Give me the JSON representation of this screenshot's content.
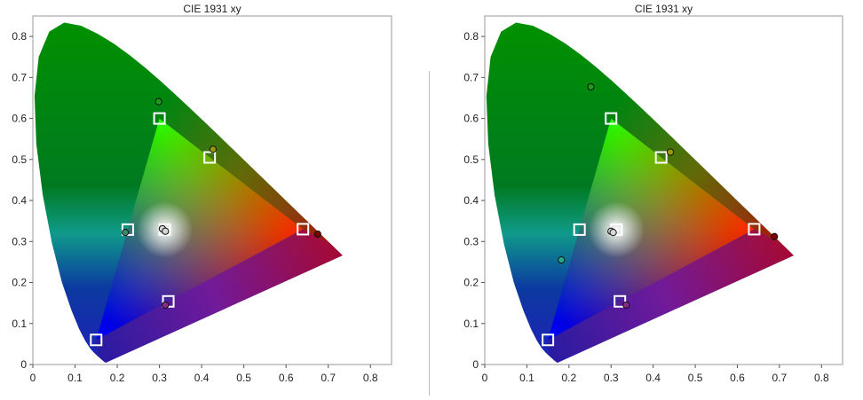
{
  "chart_data": [
    {
      "type": "scatter",
      "title": "CIE 1931 xy",
      "xlabel": "",
      "ylabel": "",
      "xlim": [
        0,
        0.85
      ],
      "ylim": [
        0,
        0.85
      ],
      "x_ticks": [
        "0",
        "0.1",
        "0.2",
        "0.3",
        "0.4",
        "0.5",
        "0.6",
        "0.7",
        "0.8"
      ],
      "y_ticks": [
        "0",
        "0.1",
        "0.2",
        "0.3",
        "0.4",
        "0.5",
        "0.6",
        "0.7",
        "0.8"
      ],
      "grid": false,
      "legend": "none",
      "gamut_triangle": [
        [
          0.64,
          0.33
        ],
        [
          0.3,
          0.6
        ],
        [
          0.15,
          0.06
        ]
      ],
      "targets": [
        {
          "x": 0.64,
          "y": 0.33
        },
        {
          "x": 0.3,
          "y": 0.6
        },
        {
          "x": 0.15,
          "y": 0.06
        },
        {
          "x": 0.419,
          "y": 0.505
        },
        {
          "x": 0.225,
          "y": 0.329
        },
        {
          "x": 0.321,
          "y": 0.154
        },
        {
          "x": 0.3127,
          "y": 0.329
        }
      ],
      "measurements": [
        {
          "x": 0.675,
          "y": 0.318,
          "color": "#7a0000"
        },
        {
          "x": 0.298,
          "y": 0.641,
          "color": "#1e9a1e"
        },
        {
          "x": 0.427,
          "y": 0.525,
          "color": "#9a9a00"
        },
        {
          "x": 0.219,
          "y": 0.322,
          "color": "#3a8a6a"
        },
        {
          "x": 0.314,
          "y": 0.145,
          "color": "#8a2a8a"
        },
        {
          "x": 0.307,
          "y": 0.331,
          "color": "#d8d8d8"
        },
        {
          "x": 0.314,
          "y": 0.325,
          "color": "#d8d8d8"
        }
      ]
    },
    {
      "type": "scatter",
      "title": "CIE 1931 xy",
      "xlabel": "",
      "ylabel": "",
      "xlim": [
        0,
        0.85
      ],
      "ylim": [
        0,
        0.85
      ],
      "x_ticks": [
        "0",
        "0.1",
        "0.2",
        "0.3",
        "0.4",
        "0.5",
        "0.6",
        "0.7",
        "0.8"
      ],
      "y_ticks": [
        "0",
        "0.1",
        "0.2",
        "0.3",
        "0.4",
        "0.5",
        "0.6",
        "0.7",
        "0.8"
      ],
      "grid": false,
      "legend": "none",
      "gamut_triangle": [
        [
          0.64,
          0.33
        ],
        [
          0.3,
          0.6
        ],
        [
          0.15,
          0.06
        ]
      ],
      "targets": [
        {
          "x": 0.64,
          "y": 0.33
        },
        {
          "x": 0.3,
          "y": 0.6
        },
        {
          "x": 0.15,
          "y": 0.06
        },
        {
          "x": 0.419,
          "y": 0.505
        },
        {
          "x": 0.225,
          "y": 0.329
        },
        {
          "x": 0.321,
          "y": 0.154
        },
        {
          "x": 0.3127,
          "y": 0.329
        }
      ],
      "measurements": [
        {
          "x": 0.688,
          "y": 0.312,
          "color": "#7a0000"
        },
        {
          "x": 0.252,
          "y": 0.677,
          "color": "#1e9a1e"
        },
        {
          "x": 0.441,
          "y": 0.518,
          "color": "#9a9a00"
        },
        {
          "x": 0.182,
          "y": 0.255,
          "color": "#2aa88a"
        },
        {
          "x": 0.336,
          "y": 0.145,
          "color": "#8a2a8a"
        },
        {
          "x": 0.3,
          "y": 0.325,
          "color": "#d8d8d8"
        },
        {
          "x": 0.305,
          "y": 0.322,
          "color": "#d8d8d8"
        }
      ]
    }
  ]
}
